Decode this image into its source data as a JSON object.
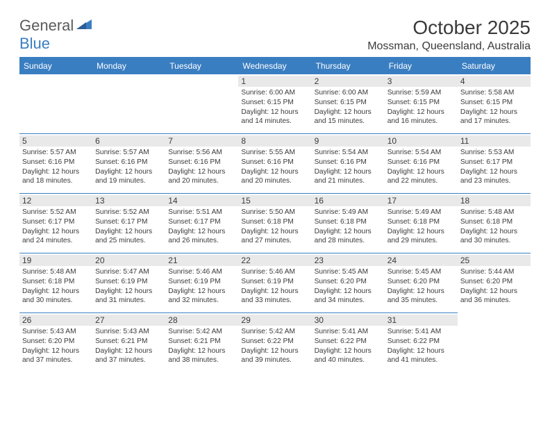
{
  "brand": {
    "part1": "General",
    "part2": "Blue"
  },
  "title": "October 2025",
  "location": "Mossman, Queensland, Australia",
  "colors": {
    "accent": "#3a7ec2",
    "text": "#3a3a3a",
    "daynum_bg": "#e9e9e9",
    "background": "#ffffff"
  },
  "weekdays": [
    "Sunday",
    "Monday",
    "Tuesday",
    "Wednesday",
    "Thursday",
    "Friday",
    "Saturday"
  ],
  "first_weekday_index": 3,
  "days": [
    {
      "n": "1",
      "sunrise": "6:00 AM",
      "sunset": "6:15 PM",
      "daylight": "12 hours and 14 minutes."
    },
    {
      "n": "2",
      "sunrise": "6:00 AM",
      "sunset": "6:15 PM",
      "daylight": "12 hours and 15 minutes."
    },
    {
      "n": "3",
      "sunrise": "5:59 AM",
      "sunset": "6:15 PM",
      "daylight": "12 hours and 16 minutes."
    },
    {
      "n": "4",
      "sunrise": "5:58 AM",
      "sunset": "6:15 PM",
      "daylight": "12 hours and 17 minutes."
    },
    {
      "n": "5",
      "sunrise": "5:57 AM",
      "sunset": "6:16 PM",
      "daylight": "12 hours and 18 minutes."
    },
    {
      "n": "6",
      "sunrise": "5:57 AM",
      "sunset": "6:16 PM",
      "daylight": "12 hours and 19 minutes."
    },
    {
      "n": "7",
      "sunrise": "5:56 AM",
      "sunset": "6:16 PM",
      "daylight": "12 hours and 20 minutes."
    },
    {
      "n": "8",
      "sunrise": "5:55 AM",
      "sunset": "6:16 PM",
      "daylight": "12 hours and 20 minutes."
    },
    {
      "n": "9",
      "sunrise": "5:54 AM",
      "sunset": "6:16 PM",
      "daylight": "12 hours and 21 minutes."
    },
    {
      "n": "10",
      "sunrise": "5:54 AM",
      "sunset": "6:16 PM",
      "daylight": "12 hours and 22 minutes."
    },
    {
      "n": "11",
      "sunrise": "5:53 AM",
      "sunset": "6:17 PM",
      "daylight": "12 hours and 23 minutes."
    },
    {
      "n": "12",
      "sunrise": "5:52 AM",
      "sunset": "6:17 PM",
      "daylight": "12 hours and 24 minutes."
    },
    {
      "n": "13",
      "sunrise": "5:52 AM",
      "sunset": "6:17 PM",
      "daylight": "12 hours and 25 minutes."
    },
    {
      "n": "14",
      "sunrise": "5:51 AM",
      "sunset": "6:17 PM",
      "daylight": "12 hours and 26 minutes."
    },
    {
      "n": "15",
      "sunrise": "5:50 AM",
      "sunset": "6:18 PM",
      "daylight": "12 hours and 27 minutes."
    },
    {
      "n": "16",
      "sunrise": "5:49 AM",
      "sunset": "6:18 PM",
      "daylight": "12 hours and 28 minutes."
    },
    {
      "n": "17",
      "sunrise": "5:49 AM",
      "sunset": "6:18 PM",
      "daylight": "12 hours and 29 minutes."
    },
    {
      "n": "18",
      "sunrise": "5:48 AM",
      "sunset": "6:18 PM",
      "daylight": "12 hours and 30 minutes."
    },
    {
      "n": "19",
      "sunrise": "5:48 AM",
      "sunset": "6:18 PM",
      "daylight": "12 hours and 30 minutes."
    },
    {
      "n": "20",
      "sunrise": "5:47 AM",
      "sunset": "6:19 PM",
      "daylight": "12 hours and 31 minutes."
    },
    {
      "n": "21",
      "sunrise": "5:46 AM",
      "sunset": "6:19 PM",
      "daylight": "12 hours and 32 minutes."
    },
    {
      "n": "22",
      "sunrise": "5:46 AM",
      "sunset": "6:19 PM",
      "daylight": "12 hours and 33 minutes."
    },
    {
      "n": "23",
      "sunrise": "5:45 AM",
      "sunset": "6:20 PM",
      "daylight": "12 hours and 34 minutes."
    },
    {
      "n": "24",
      "sunrise": "5:45 AM",
      "sunset": "6:20 PM",
      "daylight": "12 hours and 35 minutes."
    },
    {
      "n": "25",
      "sunrise": "5:44 AM",
      "sunset": "6:20 PM",
      "daylight": "12 hours and 36 minutes."
    },
    {
      "n": "26",
      "sunrise": "5:43 AM",
      "sunset": "6:20 PM",
      "daylight": "12 hours and 37 minutes."
    },
    {
      "n": "27",
      "sunrise": "5:43 AM",
      "sunset": "6:21 PM",
      "daylight": "12 hours and 37 minutes."
    },
    {
      "n": "28",
      "sunrise": "5:42 AM",
      "sunset": "6:21 PM",
      "daylight": "12 hours and 38 minutes."
    },
    {
      "n": "29",
      "sunrise": "5:42 AM",
      "sunset": "6:22 PM",
      "daylight": "12 hours and 39 minutes."
    },
    {
      "n": "30",
      "sunrise": "5:41 AM",
      "sunset": "6:22 PM",
      "daylight": "12 hours and 40 minutes."
    },
    {
      "n": "31",
      "sunrise": "5:41 AM",
      "sunset": "6:22 PM",
      "daylight": "12 hours and 41 minutes."
    }
  ],
  "labels": {
    "sunrise_prefix": "Sunrise: ",
    "sunset_prefix": "Sunset: ",
    "daylight_prefix": "Daylight: "
  }
}
